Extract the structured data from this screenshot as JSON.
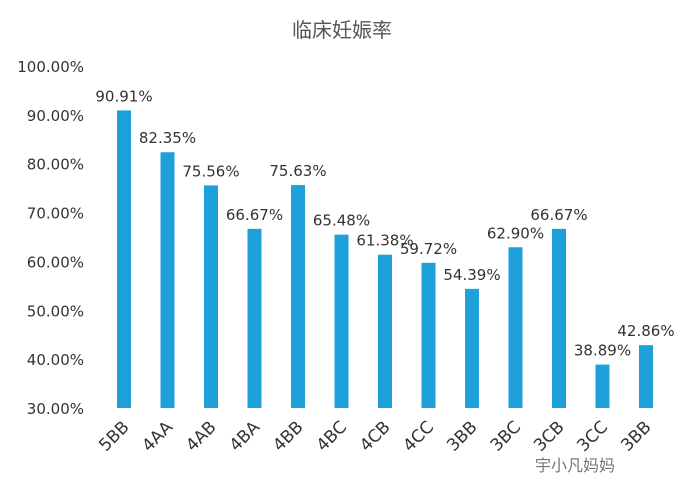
{
  "chart_data": {
    "type": "bar",
    "title": "临床妊娠率",
    "categories": [
      "5BB",
      "4AA",
      "4AB",
      "4BA",
      "4BB",
      "4BC",
      "4CB",
      "4CC",
      "3BB",
      "3BC",
      "3CB",
      "3CC",
      "3BB"
    ],
    "values": [
      90.91,
      82.35,
      75.56,
      66.67,
      75.63,
      65.48,
      61.38,
      59.72,
      54.39,
      62.9,
      66.67,
      38.89,
      42.86
    ],
    "data_labels": [
      "90.91%",
      "82.35%",
      "75.56%",
      "66.67%",
      "75.63%",
      "65.48%",
      "61.38%",
      "59.72%",
      "54.39%",
      "62.90%",
      "66.67%",
      "38.89%",
      "42.86%"
    ],
    "ylim": [
      30,
      100
    ],
    "yticks": [
      30,
      40,
      50,
      60,
      70,
      80,
      90,
      100
    ],
    "ytick_labels": [
      "30.00%",
      "40.00%",
      "50.00%",
      "60.00%",
      "70.00%",
      "80.00%",
      "90.00%",
      "100.00%"
    ],
    "grid": false,
    "colors": {
      "bar": "#1EA0DB",
      "text": "#333333"
    }
  },
  "watermark": "宇小凡妈妈"
}
